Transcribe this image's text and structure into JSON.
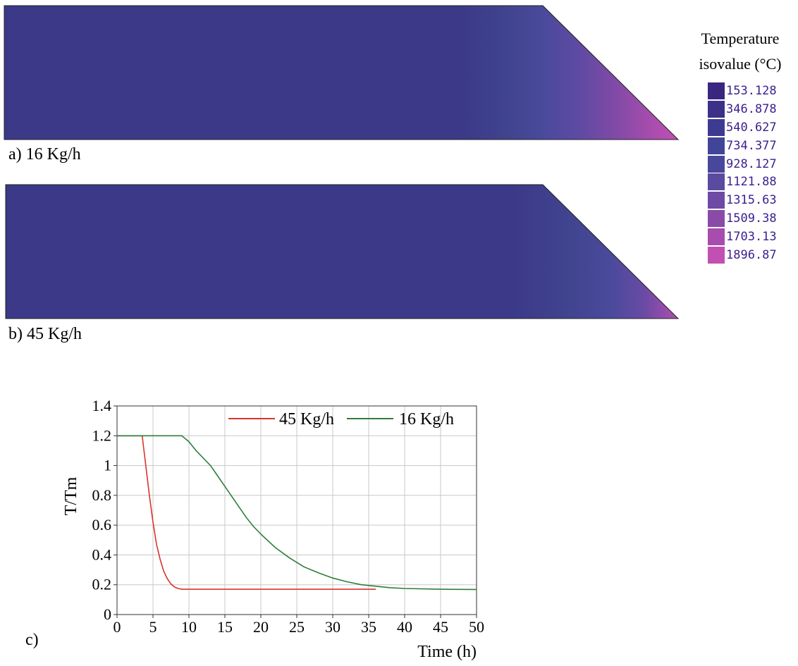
{
  "panels": [
    {
      "label": "a) 16 Kg/h"
    },
    {
      "label": "b) 45 Kg/h"
    }
  ],
  "legend": {
    "title_line1": "Temperature",
    "title_line2": "isovalue (°C)",
    "entries": [
      {
        "value": "153.128",
        "color": "#3a2680"
      },
      {
        "value": "346.878",
        "color": "#3c3089"
      },
      {
        "value": "540.627",
        "color": "#3e3a91"
      },
      {
        "value": "734.377",
        "color": "#414598"
      },
      {
        "value": "928.127",
        "color": "#48479b"
      },
      {
        "value": "1121.88",
        "color": "#5a4aa0"
      },
      {
        "value": "1315.63",
        "color": "#6d4aa4"
      },
      {
        "value": "1509.38",
        "color": "#8a4aa8"
      },
      {
        "value": "1703.13",
        "color": "#a84cad"
      },
      {
        "value": "1896.87",
        "color": "#c250b2"
      }
    ]
  },
  "chart_label": "c)",
  "chart_data": {
    "type": "line",
    "xlabel": "Time (h)",
    "ylabel": "T/Tm",
    "xlim": [
      0,
      50
    ],
    "ylim": [
      0,
      1.4
    ],
    "xticks": [
      0,
      5,
      10,
      15,
      20,
      25,
      30,
      35,
      40,
      45,
      50
    ],
    "yticks": [
      0,
      0.2,
      0.4,
      0.6,
      0.8,
      1,
      1.2,
      1.4
    ],
    "grid": true,
    "legend_position": "top",
    "series": [
      {
        "name": "45 Kg/h",
        "color": "#d9332b",
        "x": [
          0,
          3.5,
          4,
          4.5,
          5,
          5.5,
          6,
          6.5,
          7,
          7.5,
          8,
          8.5,
          9,
          10,
          15,
          20,
          25,
          30,
          36
        ],
        "y": [
          1.2,
          1.2,
          1.0,
          0.8,
          0.62,
          0.47,
          0.37,
          0.29,
          0.24,
          0.205,
          0.185,
          0.175,
          0.17,
          0.17,
          0.17,
          0.17,
          0.17,
          0.17,
          0.17
        ]
      },
      {
        "name": "16 Kg/h",
        "color": "#2e7d3a",
        "x": [
          0,
          9,
          10,
          11,
          12,
          13,
          14,
          15,
          16,
          17,
          18,
          19,
          20,
          22,
          24,
          26,
          28,
          30,
          32,
          34,
          36,
          38,
          40,
          45,
          50
        ],
        "y": [
          1.2,
          1.2,
          1.16,
          1.1,
          1.05,
          1.0,
          0.93,
          0.86,
          0.79,
          0.72,
          0.65,
          0.59,
          0.54,
          0.45,
          0.38,
          0.32,
          0.28,
          0.245,
          0.22,
          0.2,
          0.19,
          0.18,
          0.175,
          0.17,
          0.168
        ]
      }
    ]
  }
}
